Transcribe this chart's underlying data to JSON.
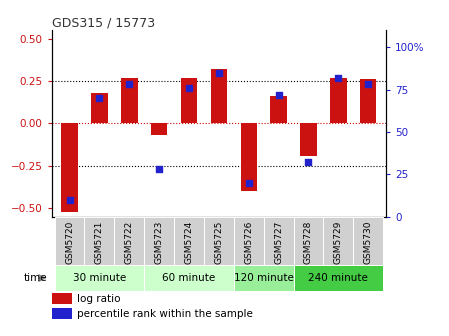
{
  "title": "GDS315 / 15773",
  "samples": [
    "GSM5720",
    "GSM5721",
    "GSM5722",
    "GSM5723",
    "GSM5724",
    "GSM5725",
    "GSM5726",
    "GSM5727",
    "GSM5728",
    "GSM5729",
    "GSM5730"
  ],
  "log_ratio": [
    -0.52,
    0.18,
    0.27,
    -0.07,
    0.27,
    0.32,
    -0.4,
    0.16,
    -0.19,
    0.27,
    0.26
  ],
  "percentile": [
    10,
    70,
    78,
    28,
    76,
    85,
    20,
    72,
    32,
    82,
    78
  ],
  "groups": [
    {
      "label": "30 minute",
      "start": 0,
      "end": 2,
      "color": "#ccffcc"
    },
    {
      "label": "60 minute",
      "start": 3,
      "end": 5,
      "color": "#ccffcc"
    },
    {
      "label": "120 minute",
      "start": 6,
      "end": 7,
      "color": "#99ee99"
    },
    {
      "label": "240 minute",
      "start": 8,
      "end": 10,
      "color": "#44cc44"
    }
  ],
  "bar_color": "#cc1111",
  "dot_color": "#2222cc",
  "ylim_left": [
    -0.55,
    0.55
  ],
  "ylim_right": [
    0,
    110
  ],
  "yticks_left": [
    -0.5,
    -0.25,
    0.0,
    0.25,
    0.5
  ],
  "yticks_right": [
    0,
    25,
    50,
    75,
    100
  ],
  "hlines": [
    -0.25,
    0.0,
    0.25
  ],
  "hline_colors": [
    "black",
    "#cc0000",
    "black"
  ],
  "hline_styles": [
    "dotted",
    "dotted",
    "dotted"
  ],
  "time_label": "time",
  "legend_log_ratio": "log ratio",
  "legend_percentile": "percentile rank within the sample",
  "bar_width": 0.55,
  "dot_size": 22,
  "background_color": "#ffffff",
  "tick_label_color_left": "#cc1111",
  "tick_label_color_right": "#2222cc",
  "gray_box_color": "#d0d0d0",
  "sample_label_fontsize": 6.5,
  "group_label_fontsize": 7.5,
  "title_fontsize": 9
}
